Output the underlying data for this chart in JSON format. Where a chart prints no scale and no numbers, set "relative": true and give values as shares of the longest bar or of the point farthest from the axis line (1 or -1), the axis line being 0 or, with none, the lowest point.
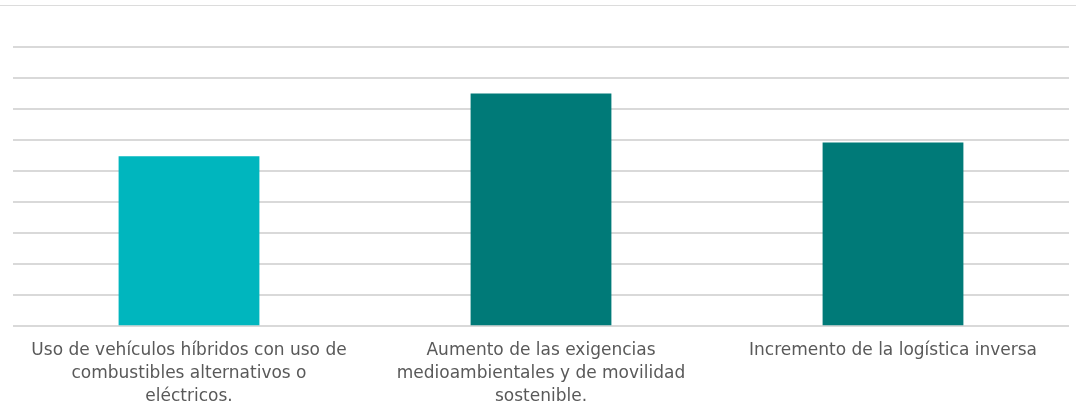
{
  "chart_data": {
    "type": "bar",
    "categories": [
      "Uso de vehículos híbridos con uso de combustibles alternativos o eléctricos.",
      "Aumento de las exigencias medioambientales y de movilidad sostenible.",
      "Incremento de la logística inversa"
    ],
    "values": [
      0.73,
      1,
      0.79
    ],
    "colors": [
      "#00b6be",
      "#007a78",
      "#007a78"
    ],
    "relative": true,
    "grid": "y"
  }
}
